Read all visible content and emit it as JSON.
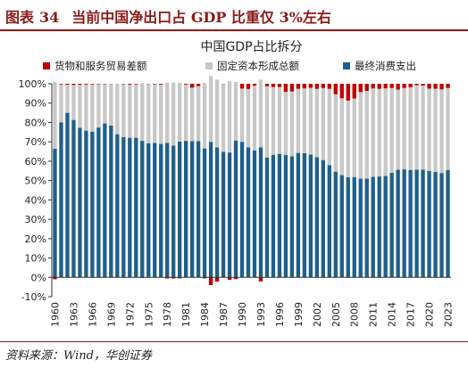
{
  "figure": {
    "label": "图表",
    "number": "34",
    "caption": "当前中国净出口占 GDP 比重仅 3%左右",
    "source": "资料来源：Wind，华创证券"
  },
  "colors": {
    "net_exports": "#c00000",
    "capital_formation": "#c8c8c8",
    "consumption": "#1f5f8b",
    "accent": "#8b1a1a"
  },
  "chart_data": {
    "type": "bar",
    "stacked": true,
    "title": "中国GDP占比拆分",
    "legend_position": "top",
    "grid": false,
    "ylim": [
      -10,
      100
    ],
    "y_ticks": [
      "-10%",
      "0%",
      "10%",
      "20%",
      "30%",
      "40%",
      "50%",
      "60%",
      "70%",
      "80%",
      "90%",
      "100%"
    ],
    "y_tick_values": [
      -10,
      0,
      10,
      20,
      30,
      40,
      50,
      60,
      70,
      80,
      90,
      100
    ],
    "x_ticks": [
      "1960",
      "1963",
      "1966",
      "1969",
      "1972",
      "1975",
      "1978",
      "1981",
      "1984",
      "1987",
      "1990",
      "1993",
      "1996",
      "1999",
      "2002",
      "2005",
      "2008",
      "2011",
      "2014",
      "2017",
      "2020",
      "2023"
    ],
    "x": [
      1960,
      1961,
      1962,
      1963,
      1964,
      1965,
      1966,
      1967,
      1968,
      1969,
      1970,
      1971,
      1972,
      1973,
      1974,
      1975,
      1976,
      1977,
      1978,
      1979,
      1980,
      1981,
      1982,
      1983,
      1984,
      1985,
      1986,
      1987,
      1988,
      1989,
      1990,
      1991,
      1992,
      1993,
      1994,
      1995,
      1996,
      1997,
      1998,
      1999,
      2000,
      2001,
      2002,
      2003,
      2004,
      2005,
      2006,
      2007,
      2008,
      2009,
      2010,
      2011,
      2012,
      2013,
      2014,
      2015,
      2016,
      2017,
      2018,
      2019,
      2020,
      2021,
      2022,
      2023
    ],
    "series": [
      {
        "name": "货物和服务贸易差额",
        "color_key": "net_exports",
        "values": [
          -1.0,
          0.3,
          0.5,
          0.6,
          0.5,
          0.4,
          0.3,
          0.2,
          0.2,
          0.1,
          0.0,
          0.2,
          0.4,
          0.3,
          -0.3,
          0.1,
          0.3,
          0.4,
          -0.6,
          -0.6,
          -0.5,
          0.4,
          2.0,
          1.2,
          -0.5,
          -4.0,
          -2.2,
          0.1,
          -1.3,
          -0.9,
          2.5,
          2.7,
          1.0,
          -2.1,
          1.3,
          1.7,
          1.7,
          4.2,
          4.0,
          2.6,
          2.4,
          2.1,
          2.6,
          2.2,
          2.6,
          5.4,
          7.5,
          8.7,
          7.6,
          4.3,
          3.7,
          2.4,
          2.6,
          2.4,
          2.2,
          3.0,
          2.2,
          1.8,
          0.7,
          0.9,
          2.5,
          2.6,
          2.9,
          2.2
        ]
      },
      {
        "name": "固定资本形成总额",
        "color_key": "capital_formation",
        "values": [
          34.5,
          19.6,
          14.5,
          18.1,
          22.2,
          23.8,
          24.4,
          22.4,
          20.3,
          21.5,
          26.1,
          27.3,
          27.5,
          27.6,
          29.8,
          30.6,
          30.3,
          30.7,
          31.2,
          32.6,
          30.4,
          29.1,
          27.6,
          28.4,
          33.9,
          34.0,
          35.0,
          35.1,
          36.8,
          30.2,
          27.5,
          30.1,
          33.4,
          35.0,
          36.8,
          35.0,
          34.5,
          32.5,
          33.5,
          33.1,
          33.5,
          34.5,
          35.3,
          37.2,
          39.4,
          40.0,
          39.7,
          39.6,
          40.6,
          44.7,
          45.3,
          45.7,
          45.3,
          45.2,
          43.8,
          41.4,
          42.0,
          42.7,
          43.7,
          43.4,
          42.6,
          42.9,
          43.2,
          42.3
        ]
      },
      {
        "name": "最终消费支出",
        "color_key": "consumption",
        "values": [
          66.5,
          80.1,
          85.0,
          81.3,
          77.3,
          75.8,
          75.3,
          77.4,
          79.5,
          78.4,
          73.9,
          72.5,
          72.1,
          72.1,
          70.5,
          69.3,
          69.4,
          68.9,
          69.4,
          68.0,
          70.1,
          70.5,
          70.4,
          70.4,
          66.6,
          70.0,
          67.2,
          64.8,
          64.5,
          70.7,
          70.0,
          67.2,
          65.6,
          67.1,
          61.9,
          63.3,
          63.8,
          63.3,
          62.5,
          64.3,
          64.1,
          63.4,
          62.1,
          60.6,
          58.0,
          54.6,
          52.8,
          51.7,
          51.8,
          51.0,
          51.0,
          51.9,
          52.1,
          52.4,
          54.0,
          55.6,
          55.8,
          55.5,
          55.6,
          55.7,
          54.9,
          54.5,
          53.9,
          55.5
        ]
      }
    ]
  }
}
